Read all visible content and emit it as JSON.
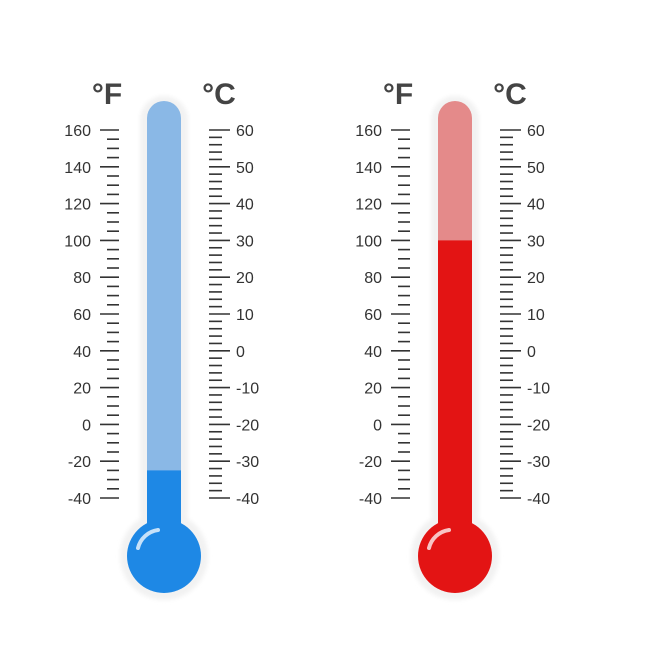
{
  "thermometers": [
    {
      "id": "cold",
      "fahrenheit_unit": "°F",
      "celsius_unit": "°C",
      "fahrenheit_ticks": [
        "160",
        "140",
        "120",
        "100",
        "80",
        "60",
        "40",
        "20",
        "0",
        "-20",
        "-40"
      ],
      "celsius_ticks": [
        "60",
        "50",
        "40",
        "30",
        "20",
        "10",
        "0",
        "-10",
        "-20",
        "-30",
        "-40"
      ],
      "reading_fahrenheit": -25,
      "fill_color": "#1e88e5",
      "tube_color": "#8ab8e6",
      "bulb_color": "#1e88e5"
    },
    {
      "id": "hot",
      "fahrenheit_unit": "°F",
      "celsius_unit": "°C",
      "fahrenheit_ticks": [
        "160",
        "140",
        "120",
        "100",
        "80",
        "60",
        "40",
        "20",
        "0",
        "-20",
        "-40"
      ],
      "celsius_ticks": [
        "60",
        "50",
        "40",
        "30",
        "20",
        "10",
        "0",
        "-10",
        "-20",
        "-30",
        "-40"
      ],
      "reading_fahrenheit": 100,
      "fill_color": "#e31414",
      "tube_color": "#e48a8a",
      "bulb_color": "#e31414"
    }
  ]
}
